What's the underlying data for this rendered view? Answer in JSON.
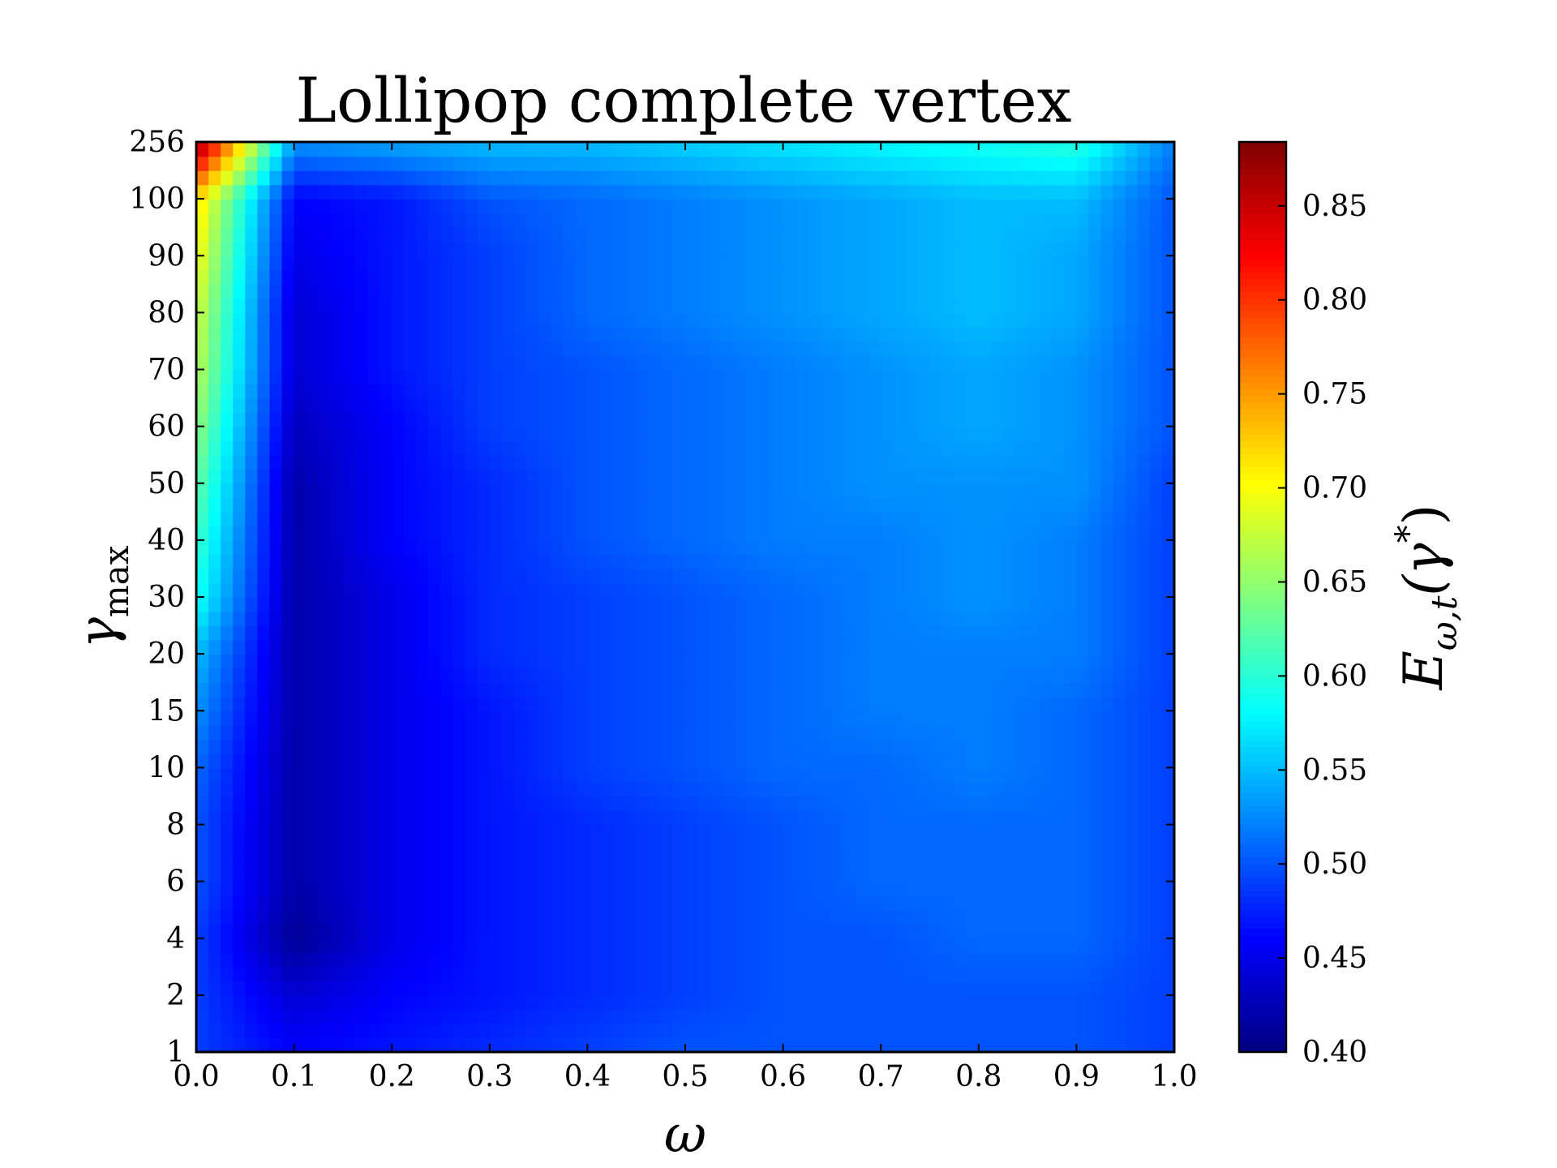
{
  "chart_data": {
    "type": "heatmap",
    "title": "Lollipop complete vertex",
    "xlabel": "ω",
    "ylabel": "γ",
    "ylabel_subscript": "max",
    "x": [
      0.0,
      0.1,
      0.2,
      0.3,
      0.4,
      0.5,
      0.6,
      0.7,
      0.8,
      0.9,
      1.0
    ],
    "x_tick_labels": [
      "0.0",
      "0.1",
      "0.2",
      "0.3",
      "0.4",
      "0.5",
      "0.6",
      "0.7",
      "0.8",
      "0.9",
      "1.0"
    ],
    "y": [
      1,
      2,
      4,
      6,
      8,
      10,
      15,
      20,
      30,
      40,
      50,
      60,
      70,
      80,
      90,
      100,
      256
    ],
    "y_tick_labels": [
      "1",
      "2",
      "4",
      "6",
      "8",
      "10",
      "15",
      "20",
      "30",
      "40",
      "50",
      "60",
      "70",
      "80",
      "90",
      "100",
      "256"
    ],
    "y_scale": "categorical (evenly spaced)",
    "z": [
      [
        0.49,
        0.46,
        0.47,
        0.48,
        0.49,
        0.5,
        0.5,
        0.5,
        0.5,
        0.5,
        0.49
      ],
      [
        0.49,
        0.44,
        0.46,
        0.47,
        0.48,
        0.49,
        0.5,
        0.5,
        0.5,
        0.5,
        0.49
      ],
      [
        0.49,
        0.41,
        0.45,
        0.47,
        0.48,
        0.49,
        0.5,
        0.5,
        0.51,
        0.51,
        0.49
      ],
      [
        0.5,
        0.42,
        0.45,
        0.47,
        0.48,
        0.49,
        0.5,
        0.51,
        0.51,
        0.51,
        0.49
      ],
      [
        0.5,
        0.42,
        0.45,
        0.47,
        0.48,
        0.49,
        0.5,
        0.51,
        0.51,
        0.51,
        0.49
      ],
      [
        0.51,
        0.42,
        0.45,
        0.47,
        0.49,
        0.5,
        0.51,
        0.51,
        0.52,
        0.51,
        0.49
      ],
      [
        0.53,
        0.42,
        0.45,
        0.47,
        0.49,
        0.5,
        0.51,
        0.52,
        0.52,
        0.51,
        0.49
      ],
      [
        0.55,
        0.42,
        0.45,
        0.48,
        0.49,
        0.5,
        0.51,
        0.52,
        0.52,
        0.52,
        0.49
      ],
      [
        0.59,
        0.42,
        0.45,
        0.48,
        0.49,
        0.5,
        0.51,
        0.52,
        0.53,
        0.52,
        0.49
      ],
      [
        0.61,
        0.42,
        0.46,
        0.48,
        0.5,
        0.51,
        0.52,
        0.52,
        0.53,
        0.52,
        0.49
      ],
      [
        0.63,
        0.42,
        0.46,
        0.48,
        0.5,
        0.51,
        0.52,
        0.53,
        0.53,
        0.53,
        0.49
      ],
      [
        0.65,
        0.43,
        0.46,
        0.49,
        0.5,
        0.51,
        0.52,
        0.53,
        0.54,
        0.53,
        0.5
      ],
      [
        0.67,
        0.44,
        0.47,
        0.49,
        0.5,
        0.51,
        0.52,
        0.53,
        0.54,
        0.53,
        0.5
      ],
      [
        0.68,
        0.44,
        0.47,
        0.49,
        0.51,
        0.52,
        0.53,
        0.54,
        0.55,
        0.54,
        0.5
      ],
      [
        0.7,
        0.45,
        0.47,
        0.49,
        0.51,
        0.52,
        0.53,
        0.54,
        0.55,
        0.54,
        0.5
      ],
      [
        0.72,
        0.46,
        0.47,
        0.5,
        0.51,
        0.52,
        0.53,
        0.54,
        0.55,
        0.55,
        0.5
      ],
      [
        0.88,
        0.53,
        0.54,
        0.55,
        0.55,
        0.56,
        0.57,
        0.58,
        0.59,
        0.6,
        0.52
      ]
    ],
    "colormap": "jet",
    "colorbar": {
      "min": 0.4,
      "max": 0.884,
      "ticks": [
        0.4,
        0.45,
        0.5,
        0.55,
        0.6,
        0.65,
        0.7,
        0.75,
        0.8,
        0.85
      ],
      "tick_labels": [
        "0.40",
        "0.45",
        "0.50",
        "0.55",
        "0.60",
        "0.65",
        "0.70",
        "0.75",
        "0.80",
        "0.85"
      ],
      "label": "E",
      "label_subscript": "ω,t",
      "label_argument": "(γ",
      "label_superscript": "*",
      "label_close": ")"
    },
    "grid": false,
    "legend": "none"
  }
}
